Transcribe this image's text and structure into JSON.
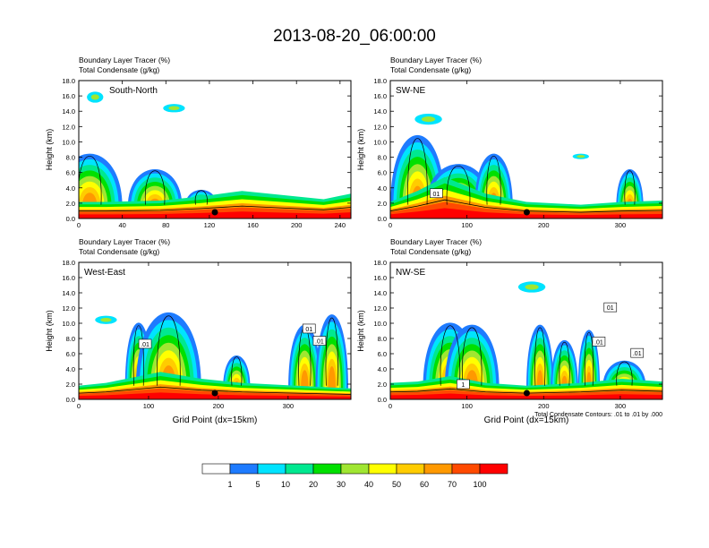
{
  "title": "2013-08-20_06:00:00",
  "footnote": "Total Condensate Contours: .01 to .01 by .000",
  "colorbar": {
    "colors": [
      "#ffffff",
      "#1e7bff",
      "#00e3ff",
      "#00e890",
      "#00e000",
      "#a0e632",
      "#ffff00",
      "#ffcc00",
      "#ff9900",
      "#ff4a00",
      "#ff0000"
    ],
    "labels": [
      "1",
      "5",
      "10",
      "20",
      "30",
      "40",
      "50",
      "60",
      "70",
      "100"
    ]
  },
  "chart_data": [
    {
      "type": "heatmap",
      "panel_label": "South-North",
      "field_label_1": "Boundary Layer Tracer   (%)",
      "field_label_2": "Total Condensate   (g/kg)",
      "ylabel": "Height (km)",
      "xlabel": "",
      "xlim": [
        0,
        250
      ],
      "ylim": [
        0,
        18
      ],
      "xticks": [
        "0",
        "40",
        "80",
        "120",
        "160",
        "200",
        "240"
      ],
      "yticks": [
        "0.0",
        "2.0",
        "4.0",
        "6.0",
        "8.0",
        "10.0",
        "12.0",
        "14.0",
        "16.0",
        "18.0"
      ],
      "contour_labels": [],
      "marker_x": 125
    },
    {
      "type": "heatmap",
      "panel_label": "SW-NE",
      "field_label_1": "Boundary Layer Tracer   (%)",
      "field_label_2": "Total Condensate   (g/kg)",
      "ylabel": "Height (km)",
      "xlabel": "",
      "xlim": [
        0,
        355
      ],
      "ylim": [
        0,
        18
      ],
      "xticks": [
        "0",
        "100",
        "200",
        "300"
      ],
      "yticks": [
        "0.0",
        "2.0",
        "4.0",
        "6.0",
        "8.0",
        "10.0",
        "12.0",
        "14.0",
        "16.0",
        "18.0"
      ],
      "contour_labels": [
        {
          "x": 60,
          "y": 3.3,
          "text": "01"
        }
      ],
      "marker_x": 178
    },
    {
      "type": "heatmap",
      "panel_label": "West-East",
      "field_label_1": "Boundary Layer Tracer   (%)",
      "field_label_2": "Total Condensate   (g/kg)",
      "ylabel": "Height (km)",
      "xlabel": "Grid Point (dx=15km)",
      "xlim": [
        0,
        390
      ],
      "ylim": [
        0,
        18
      ],
      "xticks": [
        "0",
        "100",
        "200",
        "300"
      ],
      "yticks": [
        "0.0",
        "2.0",
        "4.0",
        "6.0",
        "8.0",
        "10.0",
        "12.0",
        "14.0",
        "16.0",
        "18.0"
      ],
      "contour_labels": [
        {
          "x": 95,
          "y": 7.3,
          "text": ".01"
        },
        {
          "x": 330,
          "y": 9.3,
          "text": "01"
        },
        {
          "x": 345,
          "y": 7.7,
          "text": ".01"
        }
      ],
      "marker_x": 195
    },
    {
      "type": "heatmap",
      "panel_label": "NW-SE",
      "field_label_1": "Boundary Layer Tracer   (%)",
      "field_label_2": "Total Condensate   (g/kg)",
      "ylabel": "Height (km)",
      "xlabel": "Grid Point (dx=15km)",
      "xlim": [
        0,
        355
      ],
      "ylim": [
        0,
        18
      ],
      "xticks": [
        "0",
        "100",
        "200",
        "300"
      ],
      "yticks": [
        "0.0",
        "2.0",
        "4.0",
        "6.0",
        "8.0",
        "10.0",
        "12.0",
        "14.0",
        "16.0",
        "18.0"
      ],
      "contour_labels": [
        {
          "x": 287,
          "y": 12.1,
          "text": "01"
        },
        {
          "x": 272,
          "y": 7.6,
          "text": ".01"
        },
        {
          "x": 322,
          "y": 6.1,
          "text": ".01"
        },
        {
          "x": 95,
          "y": 2.0,
          "text": "1"
        }
      ],
      "marker_x": 178
    }
  ]
}
